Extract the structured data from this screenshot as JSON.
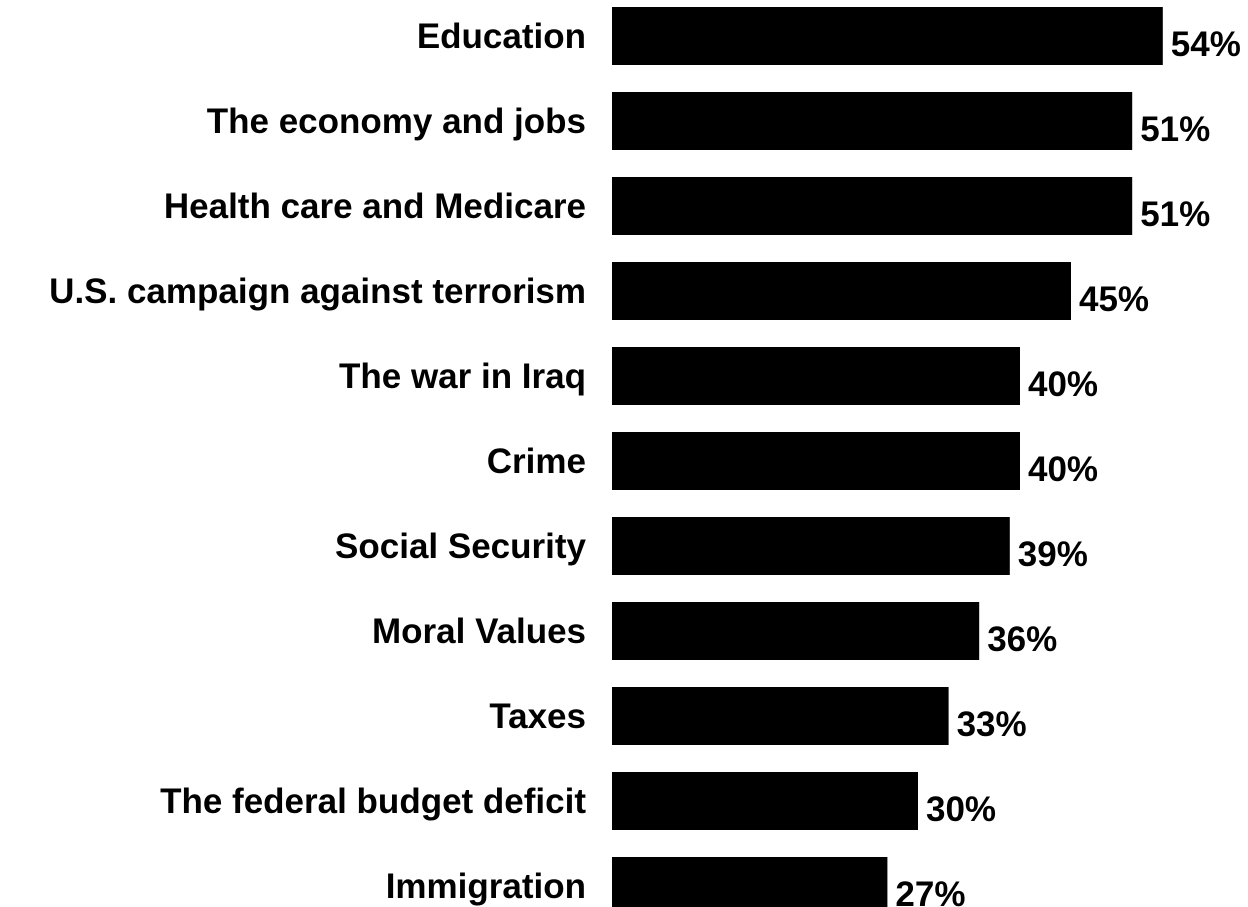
{
  "chart_data": {
    "type": "bar",
    "orientation": "horizontal",
    "title": "",
    "xlabel": "",
    "ylabel": "",
    "categories": [
      "Education",
      "The economy and jobs",
      "Health care and Medicare",
      "U.S. campaign against terrorism",
      "The war in Iraq",
      "Crime",
      "Social Security",
      "Moral Values",
      "Taxes",
      "The federal budget deficit",
      "Immigration"
    ],
    "values": [
      54,
      51,
      51,
      45,
      40,
      40,
      39,
      36,
      33,
      30,
      27
    ],
    "value_labels": [
      "54%",
      "51%",
      "51%",
      "45%",
      "40%",
      "40%",
      "39%",
      "36%",
      "33%",
      "30%",
      "27%"
    ],
    "unit": "%",
    "xlim": [
      0,
      54
    ],
    "grid": false,
    "legend": "none",
    "bar_color": "#000000"
  }
}
